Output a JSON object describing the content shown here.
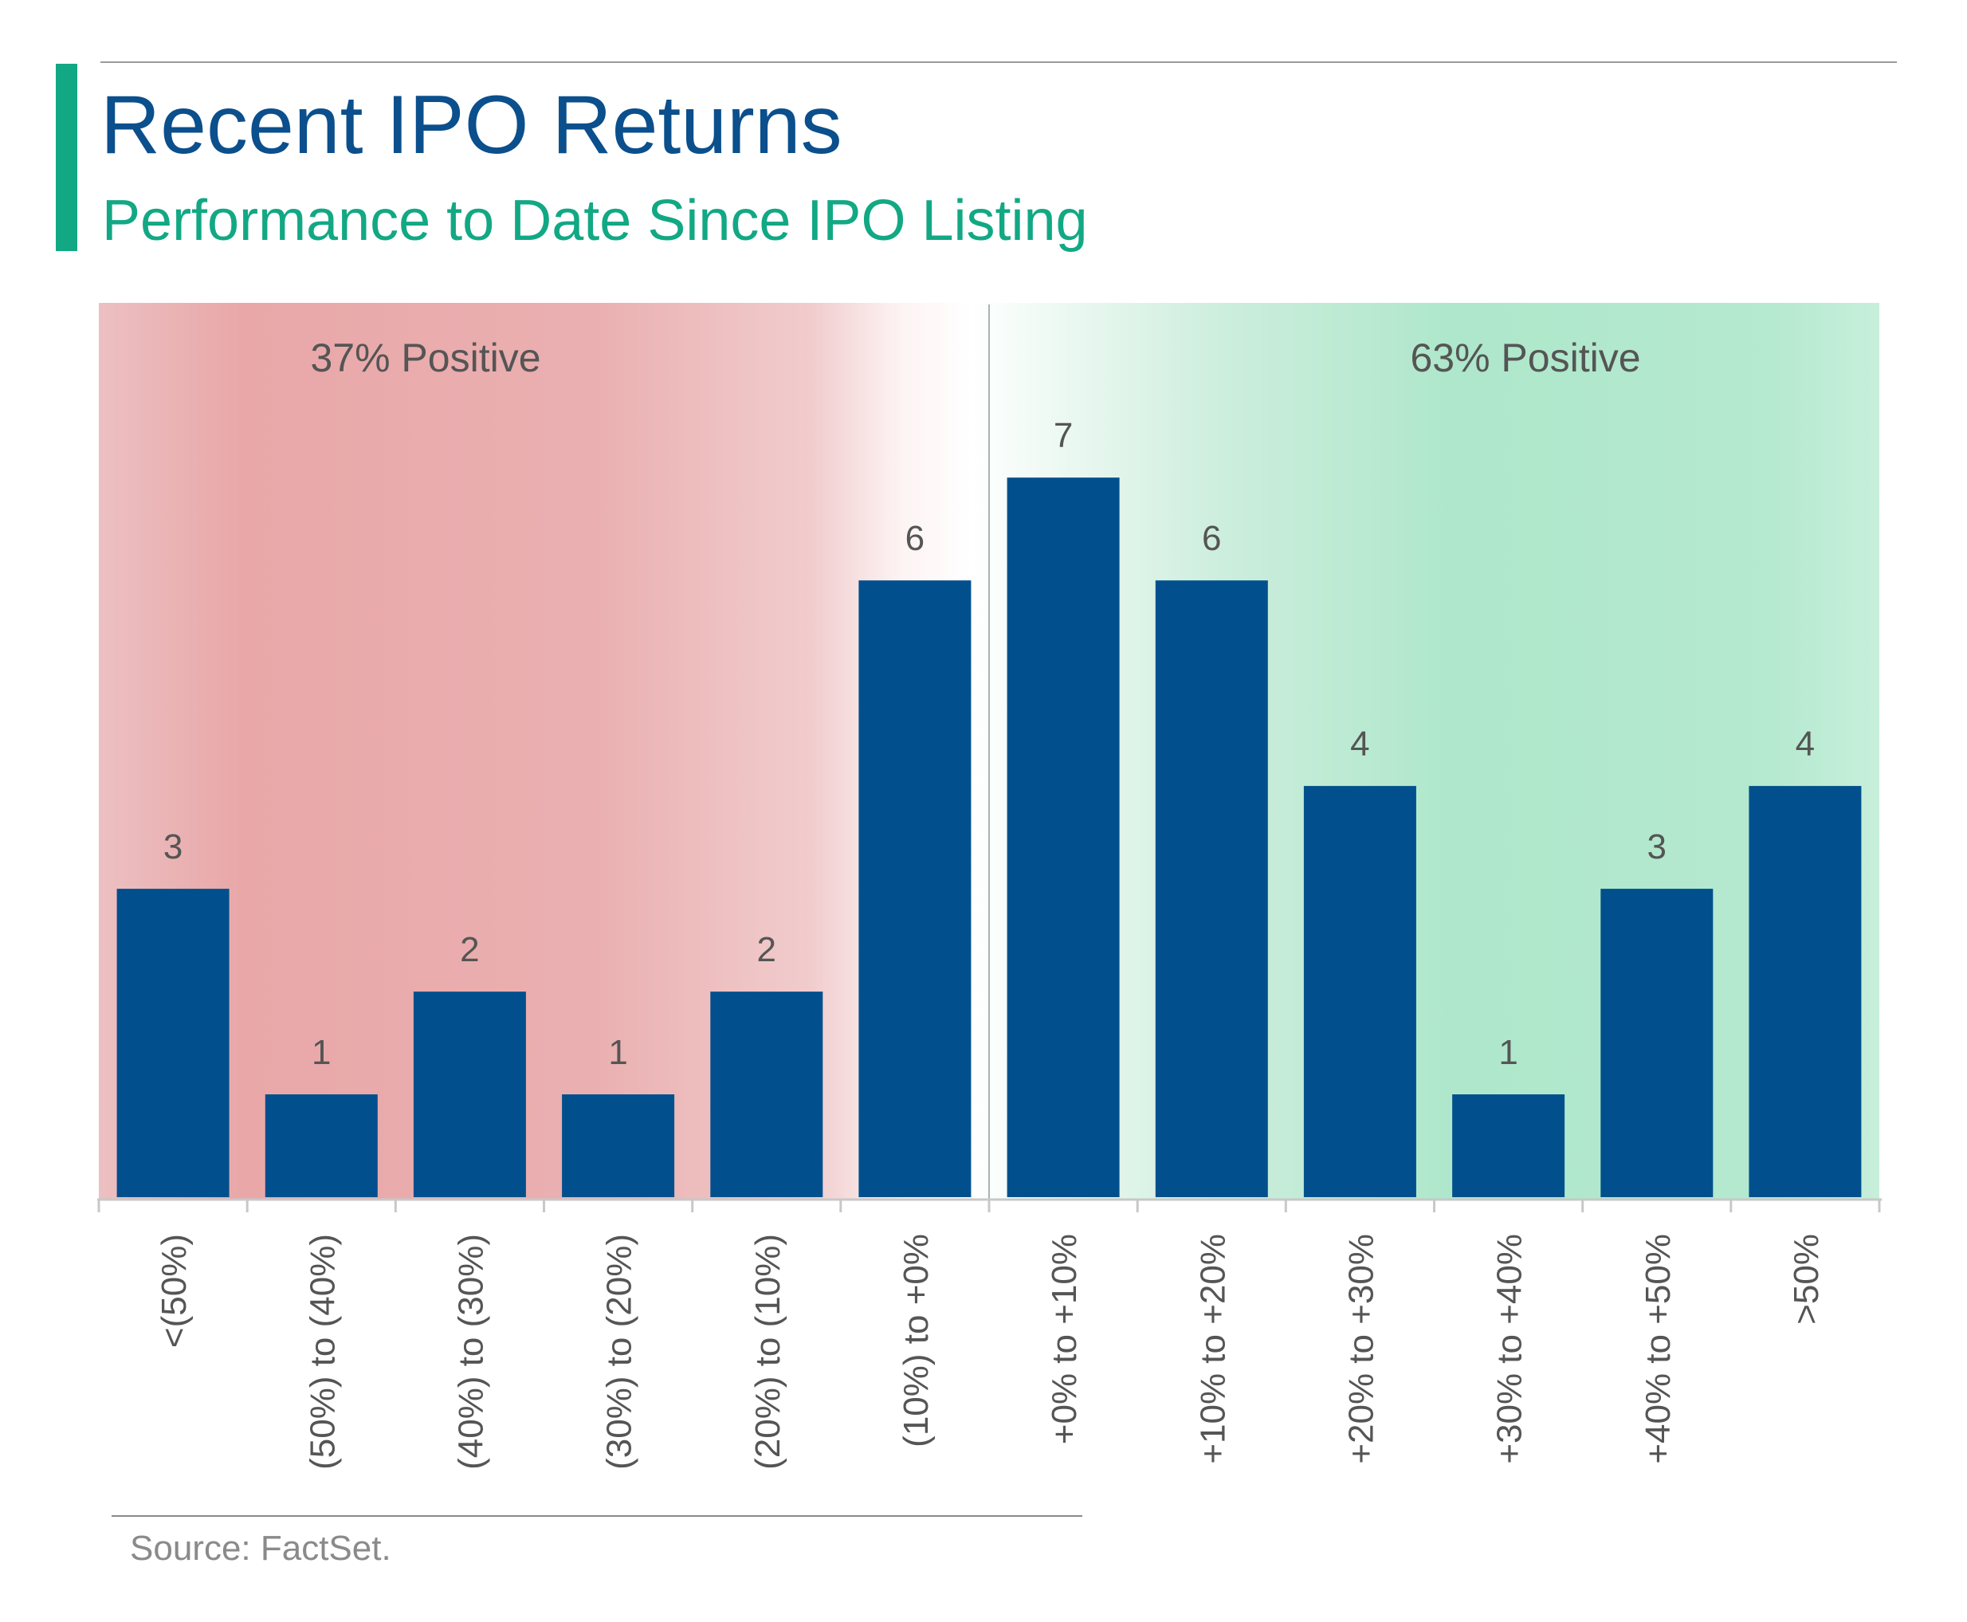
{
  "header": {
    "title": "Recent IPO Returns",
    "subtitle": "Performance to Date Since IPO Listing"
  },
  "footer": {
    "source": "Source: FactSet."
  },
  "colors": {
    "title": "#0b4f8c",
    "subtitle": "#12a884",
    "accent": "#12a884",
    "bar": "#01508d",
    "negative_zone": "#e9a7a8",
    "positive_zone": "#aee7cb",
    "text": "#555555",
    "axis": "#c8c8c8"
  },
  "chart_data": {
    "type": "bar",
    "categories": [
      "<(50%)",
      "(50%) to (40%)",
      "(40%) to (30%)",
      "(30%) to (20%)",
      "(20%) to (10%)",
      "(10%) to +0%",
      "+0% to +10%",
      "+10% to +20%",
      "+20% to +30%",
      "+30% to +40%",
      "+40% to +50%",
      ">50%"
    ],
    "values": [
      3,
      1,
      2,
      1,
      2,
      6,
      7,
      6,
      4,
      1,
      3,
      4
    ],
    "data_labels": [
      "3",
      "1",
      "2",
      "1",
      "2",
      "6",
      "7",
      "6",
      "4",
      "1",
      "3",
      "4"
    ],
    "ylim": [
      0,
      8.7
    ],
    "grid": false,
    "legend": "none",
    "annotations": [
      {
        "text": "37% Positive",
        "zone": "negative"
      },
      {
        "text": "63% Positive",
        "zone": "positive"
      }
    ]
  }
}
